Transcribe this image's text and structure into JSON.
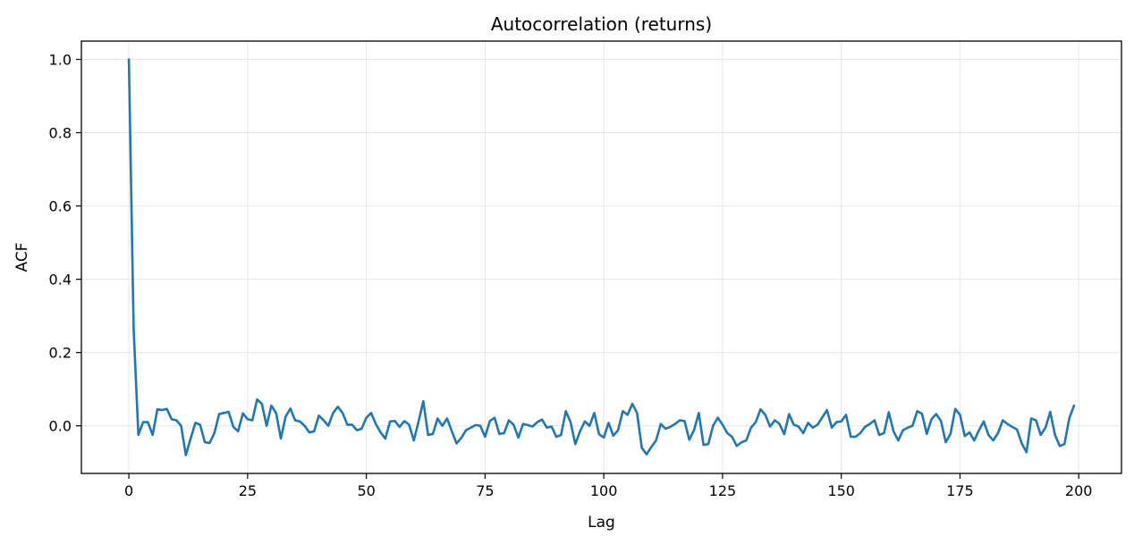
{
  "chart_data": {
    "type": "line",
    "title": "Autocorrelation (returns)",
    "xlabel": "Lag",
    "ylabel": "ACF",
    "xlim": [
      -10,
      209
    ],
    "ylim": [
      -0.13,
      1.05
    ],
    "xticks": [
      0,
      25,
      50,
      75,
      100,
      125,
      150,
      175,
      200
    ],
    "xtick_labels": [
      "0",
      "25",
      "50",
      "75",
      "100",
      "125",
      "150",
      "175",
      "200"
    ],
    "yticks": [
      0.0,
      0.2,
      0.4,
      0.6,
      0.8,
      1.0
    ],
    "ytick_labels": [
      "0.0",
      "0.2",
      "0.4",
      "0.6",
      "0.8",
      "1.0"
    ],
    "grid": true,
    "series": [
      {
        "color": "#1f77b4",
        "x_start": 0,
        "x_step": 1,
        "values": [
          1.0,
          0.265,
          -0.025,
          0.01,
          0.01,
          -0.025,
          0.045,
          0.043,
          0.046,
          0.018,
          0.015,
          0.0,
          -0.08,
          -0.035,
          0.008,
          0.003,
          -0.045,
          -0.047,
          -0.02,
          0.032,
          0.035,
          0.038,
          -0.003,
          -0.015,
          0.034,
          0.018,
          0.015,
          0.072,
          0.06,
          0.0,
          0.055,
          0.035,
          -0.035,
          0.025,
          0.047,
          0.015,
          0.012,
          0.0,
          -0.018,
          -0.015,
          0.028,
          0.015,
          0.0,
          0.035,
          0.052,
          0.035,
          0.003,
          0.003,
          -0.012,
          -0.008,
          0.022,
          0.035,
          0.005,
          -0.018,
          -0.035,
          0.012,
          0.013,
          -0.003,
          0.013,
          0.003,
          -0.04,
          0.012,
          0.067,
          -0.025,
          -0.022,
          0.02,
          0.0,
          0.02,
          -0.015,
          -0.048,
          -0.033,
          -0.012,
          -0.005,
          0.002,
          0.0,
          -0.03,
          0.013,
          0.022,
          -0.022,
          -0.02,
          0.015,
          0.003,
          -0.032,
          0.005,
          0.002,
          -0.002,
          0.01,
          0.017,
          -0.005,
          -0.002,
          -0.03,
          -0.025,
          0.04,
          0.01,
          -0.05,
          -0.015,
          0.012,
          0.0,
          0.035,
          -0.023,
          -0.032,
          0.008,
          -0.027,
          -0.012,
          0.04,
          0.03,
          0.06,
          0.035,
          -0.06,
          -0.078,
          -0.058,
          -0.04,
          0.005,
          -0.008,
          -0.003,
          0.005,
          0.015,
          0.013,
          -0.038,
          -0.012,
          0.035,
          -0.052,
          -0.05,
          0.0,
          0.022,
          0.003,
          -0.02,
          -0.03,
          -0.055,
          -0.045,
          -0.04,
          -0.005,
          0.01,
          0.045,
          0.03,
          -0.002,
          0.015,
          0.005,
          -0.023,
          0.032,
          0.003,
          -0.002,
          -0.02,
          0.008,
          -0.005,
          0.003,
          0.023,
          0.043,
          -0.005,
          0.01,
          0.012,
          0.03,
          -0.03,
          -0.03,
          -0.02,
          -0.003,
          0.005,
          0.015,
          -0.025,
          -0.02,
          0.037,
          -0.015,
          -0.04,
          -0.012,
          -0.005,
          0.0,
          0.04,
          0.033,
          -0.022,
          0.018,
          0.032,
          0.013,
          -0.045,
          -0.022,
          0.046,
          0.03,
          -0.028,
          -0.018,
          -0.04,
          -0.012,
          0.012,
          -0.025,
          -0.04,
          -0.02,
          0.015,
          0.005,
          -0.003,
          -0.01,
          -0.048,
          -0.072,
          0.02,
          0.015,
          -0.025,
          -0.005,
          0.038,
          -0.025,
          -0.055,
          -0.05,
          0.02,
          0.055
        ]
      }
    ]
  }
}
